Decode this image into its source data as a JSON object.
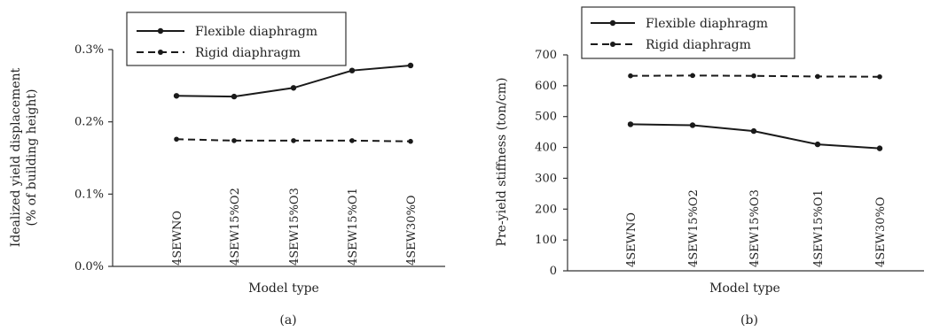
{
  "chart_data": [
    {
      "type": "line",
      "caption": "(a)",
      "xlabel": "Model type",
      "ylabel_line1": "Idealized yield displacement",
      "ylabel_line2": "(% of building height)",
      "categories": [
        "4SEWNO",
        "4SEW15%O2",
        "4SEW15%O3",
        "4SEW15%O1",
        "4SEW30%O"
      ],
      "ylim": [
        0.0,
        0.3
      ],
      "yticks": [
        0.0,
        0.1,
        0.2,
        0.3
      ],
      "ytick_labels": [
        "0.0%",
        "0.1%",
        "0.2%",
        "0.3%"
      ],
      "legend_position": "top",
      "series": [
        {
          "name": "Flexible diaphragm",
          "style": "solid",
          "values": [
            0.236,
            0.235,
            0.247,
            0.271,
            0.278
          ]
        },
        {
          "name": "Rigid diaphragm",
          "style": "dashed",
          "values": [
            0.176,
            0.174,
            0.174,
            0.174,
            0.173
          ]
        }
      ]
    },
    {
      "type": "line",
      "caption": "(b)",
      "xlabel": "Model type",
      "ylabel_line1": "Pre-yield stiffness (ton/cm)",
      "ylabel_line2": "",
      "categories": [
        "4SEWNO",
        "4SEW15%O2",
        "4SEW15%O3",
        "4SEW15%O1",
        "4SEW30%O"
      ],
      "ylim": [
        0,
        700
      ],
      "yticks": [
        0,
        100,
        200,
        300,
        400,
        500,
        600,
        700
      ],
      "ytick_labels": [
        "0",
        "100",
        "200",
        "300",
        "400",
        "500",
        "600",
        "700"
      ],
      "legend_position": "top-left",
      "series": [
        {
          "name": "Flexible diaphragm",
          "style": "solid",
          "values": [
            475,
            472,
            453,
            410,
            397
          ]
        },
        {
          "name": "Rigid diaphragm",
          "style": "dashed",
          "values": [
            632,
            633,
            632,
            630,
            629
          ]
        }
      ]
    }
  ],
  "colors": {
    "line": "#1a1a1a",
    "axis": "#333333"
  }
}
